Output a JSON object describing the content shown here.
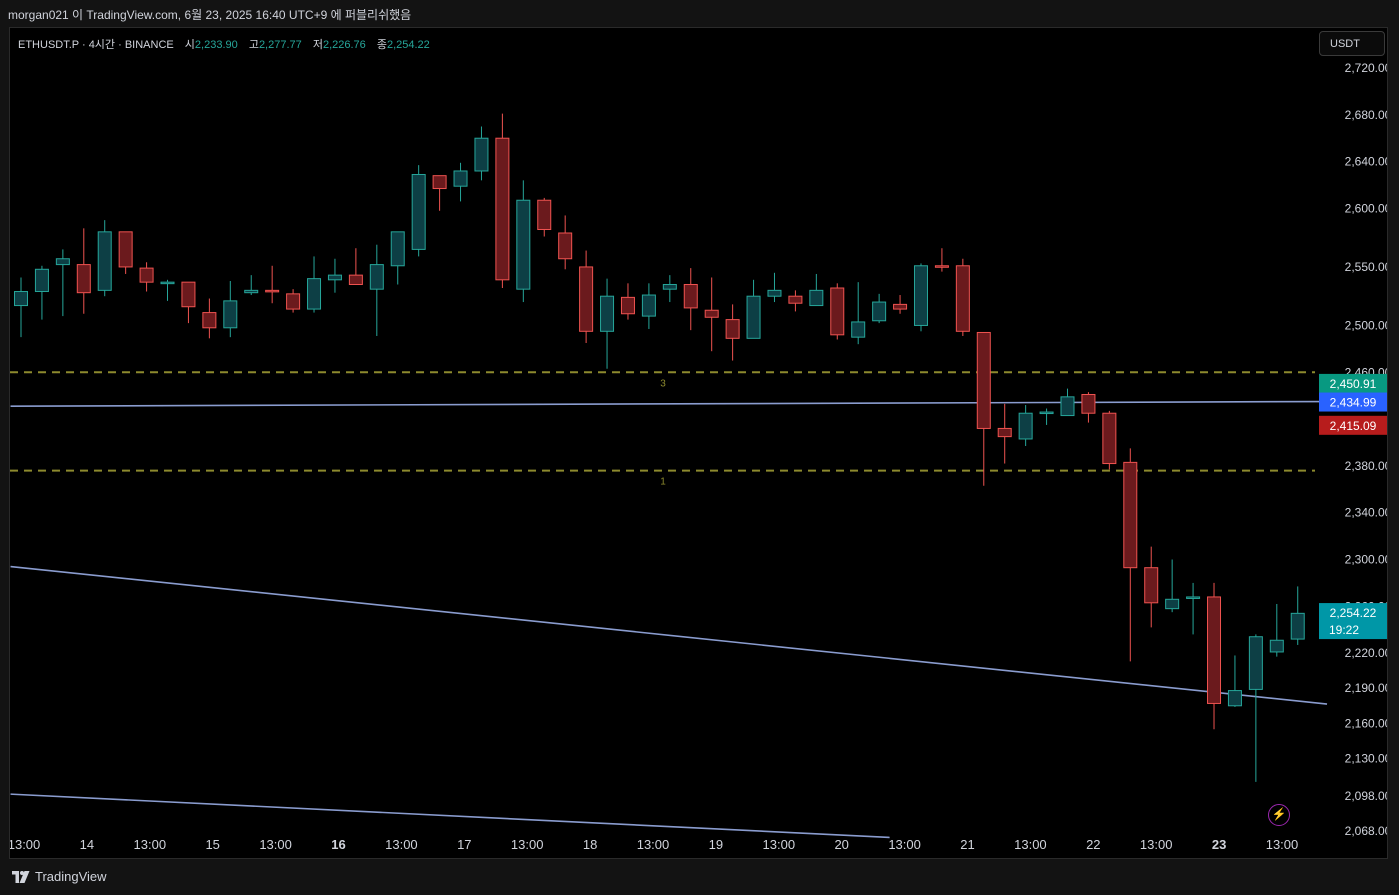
{
  "caption": "morgan021 이 TradingView.com, 6월 23, 2025 16:40 UTC+9 에 퍼블리쉬했음",
  "header": {
    "symbol": "ETHUSDT.P · 4시간 · BINANCE",
    "open_label": "시",
    "open": "2,233.90",
    "high_label": "고",
    "high": "2,277.77",
    "low_label": "저",
    "low": "2,226.76",
    "close_label": "종",
    "close": "2,254.22"
  },
  "currency_button": "USDT",
  "footer": {
    "brand": "TradingView"
  },
  "colors": {
    "up": "#26a69a",
    "up_fill": "#0d3f45",
    "down": "#ef5350",
    "down_fill": "#6b1a1d",
    "trendline": "#8a9ccf",
    "level": "#8d8a2e",
    "price_last": "#0097a7",
    "badge_green": "#089981",
    "badge_blue": "#2962ff",
    "badge_red": "#b71c1c"
  },
  "chart_data": {
    "type": "candlestick",
    "interval": "4h",
    "y_axis_position": "right",
    "y_ticks": [
      "2,720.00",
      "2,680.00",
      "2,640.00",
      "2,600.00",
      "2,550.00",
      "2,500.00",
      "2,460.00",
      "2,380.00",
      "2,340.00",
      "2,300.00",
      "2,260.00",
      "2,220.00",
      "2,190.00",
      "2,160.00",
      "2,130.00",
      "2,098.00",
      "2,068.00"
    ],
    "x_ticks": [
      {
        "label": "13:00",
        "bold": false
      },
      {
        "label": "14",
        "bold": false
      },
      {
        "label": "13:00",
        "bold": false
      },
      {
        "label": "15",
        "bold": false
      },
      {
        "label": "13:00",
        "bold": false
      },
      {
        "label": "16",
        "bold": true
      },
      {
        "label": "13:00",
        "bold": false
      },
      {
        "label": "17",
        "bold": false
      },
      {
        "label": "13:00",
        "bold": false
      },
      {
        "label": "18",
        "bold": false
      },
      {
        "label": "13:00",
        "bold": false
      },
      {
        "label": "19",
        "bold": false
      },
      {
        "label": "13:00",
        "bold": false
      },
      {
        "label": "20",
        "bold": false
      },
      {
        "label": "13:00",
        "bold": false
      },
      {
        "label": "21",
        "bold": false
      },
      {
        "label": "13:00",
        "bold": false
      },
      {
        "label": "22",
        "bold": false
      },
      {
        "label": "13:00",
        "bold": false
      },
      {
        "label": "23",
        "bold": true
      },
      {
        "label": "13:00",
        "bold": false
      }
    ],
    "ohlc": [
      [
        2517,
        2541,
        2490,
        2529
      ],
      [
        2529,
        2551,
        2505,
        2548
      ],
      [
        2552,
        2565,
        2508,
        2557
      ],
      [
        2552,
        2583,
        2510,
        2528
      ],
      [
        2530,
        2590,
        2525,
        2580
      ],
      [
        2580,
        2580,
        2544,
        2550
      ],
      [
        2549,
        2554,
        2529,
        2537
      ],
      [
        2536,
        2539,
        2521,
        2537
      ],
      [
        2537,
        2537,
        2502,
        2516
      ],
      [
        2511,
        2523,
        2489,
        2498
      ],
      [
        2498,
        2538,
        2490,
        2521
      ],
      [
        2528,
        2543,
        2526,
        2530
      ],
      [
        2530,
        2551,
        2519,
        2529
      ],
      [
        2527,
        2531,
        2511,
        2514
      ],
      [
        2514,
        2559,
        2511,
        2540
      ],
      [
        2539,
        2557,
        2528,
        2543
      ],
      [
        2543,
        2566,
        2535,
        2535
      ],
      [
        2531,
        2569,
        2491,
        2552
      ],
      [
        2551,
        2576,
        2535,
        2580
      ],
      [
        2565,
        2637,
        2559,
        2629
      ],
      [
        2628,
        2628,
        2598,
        2617
      ],
      [
        2619,
        2639,
        2606,
        2632
      ],
      [
        2632,
        2670,
        2624,
        2660
      ],
      [
        2660,
        2681,
        2532,
        2539
      ],
      [
        2531,
        2624,
        2520,
        2607
      ],
      [
        2607,
        2609,
        2576,
        2582
      ],
      [
        2579,
        2594,
        2548,
        2557
      ],
      [
        2550,
        2564,
        2485,
        2495
      ],
      [
        2495,
        2540,
        2463,
        2525
      ],
      [
        2524,
        2536,
        2505,
        2510
      ],
      [
        2508,
        2536,
        2497,
        2526
      ],
      [
        2531,
        2543,
        2520,
        2535
      ],
      [
        2535,
        2549,
        2496,
        2515
      ],
      [
        2513,
        2541,
        2478,
        2507
      ],
      [
        2505,
        2518,
        2470,
        2489
      ],
      [
        2489,
        2539,
        2489,
        2525
      ],
      [
        2525,
        2545,
        2520,
        2530
      ],
      [
        2525,
        2530,
        2512,
        2519
      ],
      [
        2517,
        2544,
        2517,
        2530
      ],
      [
        2532,
        2536,
        2488,
        2492
      ],
      [
        2490,
        2537,
        2484,
        2503
      ],
      [
        2504,
        2527,
        2502,
        2520
      ],
      [
        2518,
        2526,
        2510,
        2514
      ],
      [
        2500,
        2553,
        2495,
        2551
      ],
      [
        2551,
        2566,
        2546,
        2550
      ],
      [
        2551,
        2557,
        2491,
        2495
      ],
      [
        2494,
        2494,
        2363,
        2412
      ],
      [
        2412,
        2433,
        2382,
        2405
      ],
      [
        2403,
        2432,
        2397,
        2425
      ],
      [
        2425,
        2429,
        2415,
        2426
      ],
      [
        2423,
        2446,
        2423,
        2439
      ],
      [
        2441,
        2443,
        2417,
        2425
      ],
      [
        2425,
        2427,
        2377,
        2382
      ],
      [
        2383,
        2395,
        2213,
        2293
      ],
      [
        2293,
        2311,
        2242,
        2263
      ],
      [
        2258,
        2300,
        2255,
        2266
      ],
      [
        2268,
        2280,
        2236,
        2268
      ],
      [
        2268,
        2280,
        2155,
        2177
      ],
      [
        2175,
        2218,
        2174,
        2188
      ],
      [
        2189,
        2236,
        2110,
        2234
      ],
      [
        2221,
        2262,
        2217,
        2231
      ],
      [
        2232,
        2277,
        2227,
        2254
      ]
    ],
    "trendlines": [
      {
        "start": {
          "bar": -0.5,
          "price": 2431.0
        },
        "end": {
          "bar": 62.4,
          "price": 2435.0
        }
      },
      {
        "start": {
          "bar": -0.5,
          "price": 2294.0
        },
        "end": {
          "bar": 62.4,
          "price": 2176.5
        }
      },
      {
        "start": {
          "bar": -0.5,
          "price": 2099.5
        },
        "end": {
          "bar": 41.5,
          "price": 2062.5
        }
      }
    ],
    "horizontal_levels": [
      {
        "price": 2460,
        "label": "3"
      },
      {
        "price": 2376,
        "label": "1"
      }
    ],
    "price_badges": [
      {
        "text": "2,450.91",
        "color_key": "badge_green",
        "price": 2450.91
      },
      {
        "text": "2,434.99",
        "color_key": "badge_blue",
        "price": 2434.99
      },
      {
        "text": "2,415.09",
        "color_key": "badge_red",
        "price": 2415.09
      }
    ],
    "last_price": {
      "text": "2,254.22",
      "countdown": "19:22",
      "price": 2254.22
    }
  }
}
